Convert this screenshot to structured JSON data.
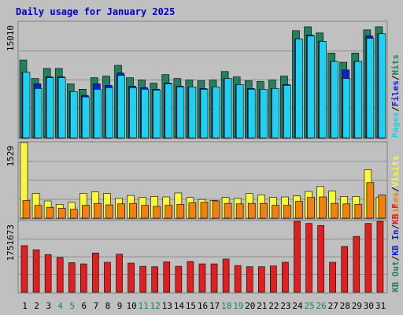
{
  "title": "Daily usage for January 2025",
  "colors": {
    "background": "#C0C0C0",
    "frame_bg": "#E8E8E8",
    "title": "#0000C0",
    "hits": "#208060",
    "files": "#1020D0",
    "pages": "#20D0F0",
    "visits": "#F8F840",
    "sites": "#F08010",
    "kbytes": "#E02020",
    "weekend": "#208060",
    "day_label": "#000000",
    "slash": "#000000"
  },
  "chart_data": [
    {
      "type": "bar",
      "panel": "hits-files-pages",
      "ymax_label": "15010",
      "ylim": [
        0,
        15010
      ],
      "legend": [
        {
          "label": "Hits",
          "colorKey": "hits"
        },
        {
          "label": "Files",
          "colorKey": "files"
        },
        {
          "label": "Pages",
          "colorKey": "pages"
        }
      ],
      "categories": [
        "1",
        "2",
        "3",
        "4",
        "5",
        "6",
        "7",
        "8",
        "9",
        "10",
        "11",
        "12",
        "13",
        "14",
        "15",
        "16",
        "17",
        "18",
        "19",
        "20",
        "21",
        "22",
        "23",
        "24",
        "25",
        "26",
        "27",
        "28",
        "29",
        "30",
        "31"
      ],
      "series": [
        {
          "name": "Hits",
          "values": [
            10100,
            7700,
            9000,
            9000,
            7000,
            6300,
            7800,
            8000,
            9400,
            7800,
            7500,
            7100,
            8200,
            7700,
            7500,
            7400,
            7500,
            8600,
            7900,
            7400,
            7300,
            7500,
            8000,
            13900,
            14400,
            13600,
            11000,
            9800,
            11000,
            14000,
            14400
          ]
        },
        {
          "name": "Files",
          "values": [
            8500,
            7000,
            7900,
            7900,
            6000,
            5500,
            7000,
            6800,
            8400,
            6700,
            6500,
            6300,
            7100,
            6700,
            6600,
            6400,
            6600,
            7700,
            6900,
            6400,
            6300,
            6400,
            6900,
            12800,
            13300,
            12500,
            9900,
            8800,
            9900,
            13200,
            13500
          ]
        },
        {
          "name": "Pages",
          "values": [
            8500,
            6400,
            7800,
            7800,
            6000,
            5300,
            6300,
            6500,
            8100,
            6500,
            6300,
            6200,
            7000,
            6600,
            6600,
            6300,
            6600,
            7700,
            6900,
            6300,
            6300,
            6400,
            6800,
            12800,
            13200,
            12500,
            9900,
            7700,
            9900,
            12900,
            13500
          ]
        }
      ]
    },
    {
      "type": "bar",
      "panel": "visits-sites",
      "ymax_label": "1529",
      "ylim": [
        0,
        1529
      ],
      "legend": [
        {
          "label": "Visits",
          "colorKey": "visits"
        },
        {
          "label": "Sites",
          "colorKey": "sites"
        }
      ],
      "categories": [
        "1",
        "2",
        "3",
        "4",
        "5",
        "6",
        "7",
        "8",
        "9",
        "10",
        "11",
        "12",
        "13",
        "14",
        "15",
        "16",
        "17",
        "18",
        "19",
        "20",
        "21",
        "22",
        "23",
        "24",
        "25",
        "26",
        "27",
        "28",
        "29",
        "30",
        "31"
      ],
      "series": [
        {
          "name": "Visits",
          "values": [
            1529,
            500,
            350,
            280,
            320,
            500,
            530,
            500,
            400,
            460,
            420,
            440,
            430,
            510,
            420,
            380,
            360,
            420,
            400,
            500,
            470,
            420,
            430,
            450,
            540,
            640,
            550,
            440,
            440,
            980,
            420
          ]
        },
        {
          "name": "Sites",
          "values": [
            360,
            260,
            220,
            200,
            180,
            260,
            300,
            270,
            290,
            300,
            260,
            240,
            260,
            280,
            310,
            320,
            350,
            300,
            290,
            300,
            300,
            260,
            260,
            340,
            420,
            430,
            300,
            290,
            280,
            720,
            470
          ]
        }
      ]
    },
    {
      "type": "bar",
      "panel": "kbin-kbout-kbf",
      "ymax_label": "1751673",
      "ylim": [
        0,
        1751673
      ],
      "legend": [
        {
          "label": "KB F",
          "colorKey": "kbytes"
        },
        {
          "label": "KB In",
          "colorKey": "files"
        },
        {
          "label": "KB Out",
          "colorKey": "weekend"
        }
      ],
      "categories": [
        "1",
        "2",
        "3",
        "4",
        "5",
        "6",
        "7",
        "8",
        "9",
        "10",
        "11",
        "12",
        "13",
        "14",
        "15",
        "16",
        "17",
        "18",
        "19",
        "20",
        "21",
        "22",
        "23",
        "24",
        "25",
        "26",
        "27",
        "28",
        "29",
        "30",
        "31"
      ],
      "series": [
        {
          "name": "KB F",
          "values": [
            1150000,
            1050000,
            930000,
            860000,
            730000,
            700000,
            970000,
            740000,
            940000,
            720000,
            640000,
            630000,
            750000,
            640000,
            760000,
            700000,
            700000,
            820000,
            660000,
            630000,
            630000,
            650000,
            740000,
            1751673,
            1700000,
            1650000,
            740000,
            1130000,
            1380000,
            1700000,
            1751673
          ]
        }
      ]
    }
  ],
  "weekend_days": [
    4,
    5,
    11,
    12,
    18,
    19,
    25,
    26
  ]
}
